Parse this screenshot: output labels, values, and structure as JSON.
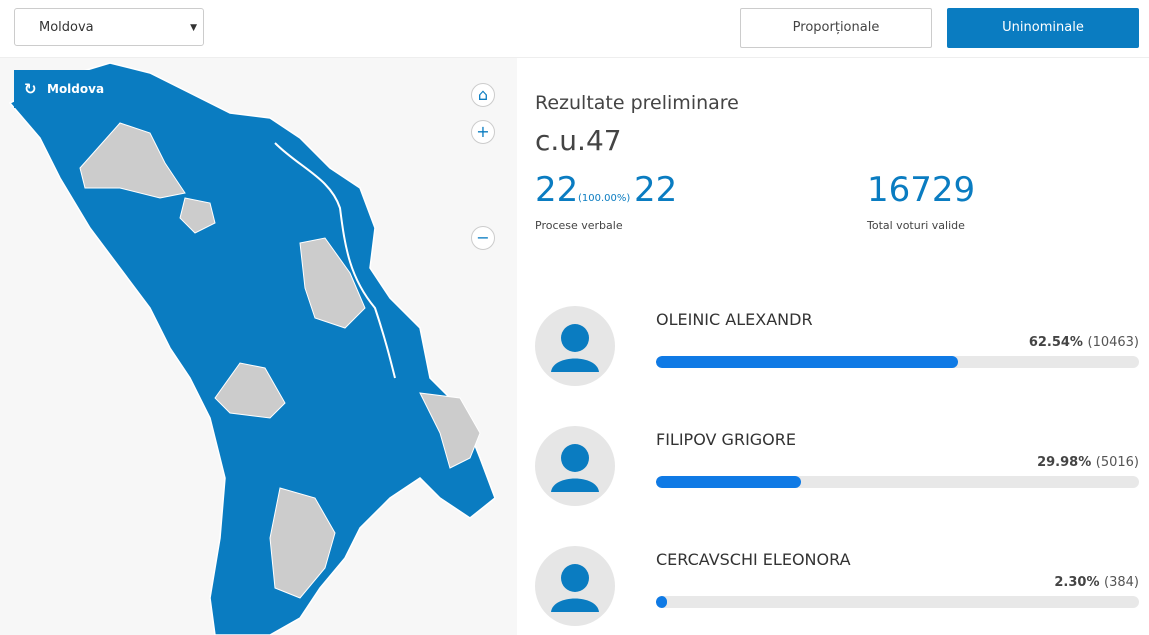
{
  "header": {
    "region_select": "Moldova",
    "buttons": [
      "Proporționale",
      "Uninominale"
    ]
  },
  "map": {
    "reset_label": "Moldova"
  },
  "results": {
    "title": "Rezultate preliminare",
    "district": "c.u.47",
    "processed": 22,
    "processed_pct_label": "(100.00%)",
    "total_protocols": 22,
    "protocols_label": "Procese verbale",
    "valid_votes": 16729,
    "valid_votes_label": "Total voturi valide"
  },
  "candidates": [
    {
      "name": "OLEINIC ALEXANDR",
      "percent": 62.54,
      "percent_label": "62.54%",
      "votes": 10463,
      "votes_label": "(10463)"
    },
    {
      "name": "FILIPOV GRIGORE",
      "percent": 29.98,
      "percent_label": "29.98%",
      "votes": 5016,
      "votes_label": "(5016)"
    },
    {
      "name": "CERCAVSCHI ELEONORA",
      "percent": 2.3,
      "percent_label": "2.30%",
      "votes": 384,
      "votes_label": "(384)"
    }
  ]
}
